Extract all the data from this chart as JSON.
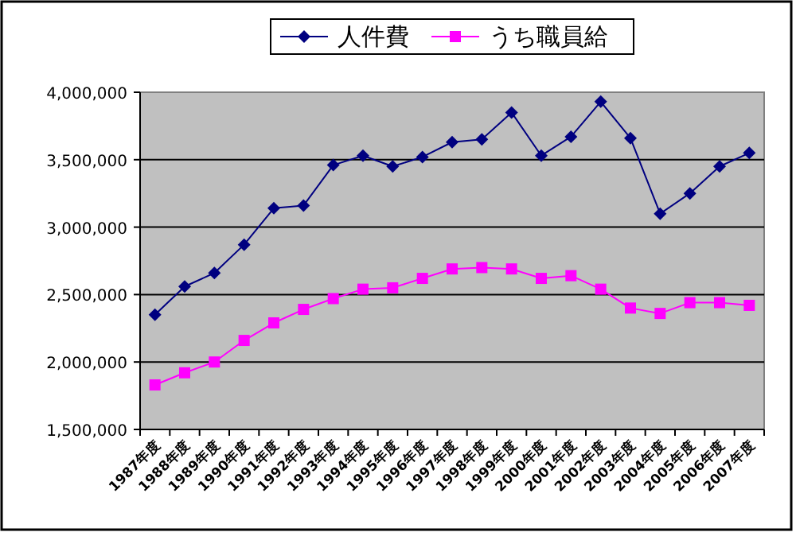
{
  "chart_data": {
    "type": "line",
    "categories": [
      "1987年度",
      "1988年度",
      "1989年度",
      "1990年度",
      "1991年度",
      "1992年度",
      "1993年度",
      "1994年度",
      "1995年度",
      "1996年度",
      "1997年度",
      "1998年度",
      "1999年度",
      "2000年度",
      "2001年度",
      "2002年度",
      "2003年度",
      "2004年度",
      "2005年度",
      "2006年度",
      "2007年度"
    ],
    "series": [
      {
        "name": "人件費",
        "color": "#000080",
        "marker": "diamond",
        "values": [
          2350000,
          2560000,
          2660000,
          2870000,
          3140000,
          3160000,
          3460000,
          3530000,
          3450000,
          3520000,
          3630000,
          3650000,
          3850000,
          3530000,
          3670000,
          3930000,
          3660000,
          3100000,
          3250000,
          3450000,
          3550000
        ]
      },
      {
        "name": "うち職員給",
        "color": "#ff00ff",
        "marker": "square",
        "values": [
          1830000,
          1920000,
          2000000,
          2160000,
          2290000,
          2390000,
          2470000,
          2540000,
          2550000,
          2620000,
          2690000,
          2700000,
          2690000,
          2620000,
          2640000,
          2540000,
          2400000,
          2360000,
          2440000,
          2440000,
          2420000
        ]
      }
    ],
    "ylim": [
      1500000,
      4000000
    ],
    "yticks": [
      {
        "value": 1500000,
        "label": "1,500,000"
      },
      {
        "value": 2000000,
        "label": "2,000,000"
      },
      {
        "value": 2500000,
        "label": "2,500,000"
      },
      {
        "value": 3000000,
        "label": "3,000,000"
      },
      {
        "value": 3500000,
        "label": "3,500,000"
      },
      {
        "value": 4000000,
        "label": "4,000,000"
      }
    ],
    "grid": "y",
    "legend": "top",
    "line_style": "solid"
  }
}
